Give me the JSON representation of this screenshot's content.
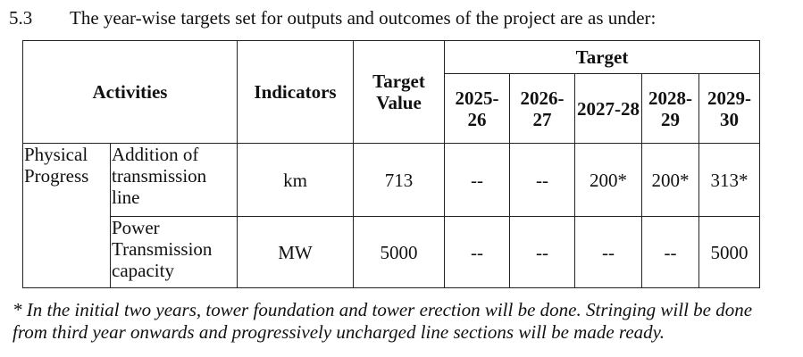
{
  "section": {
    "number": "5.3",
    "heading": "The year-wise targets set for outputs and outcomes of the project are as under:"
  },
  "table": {
    "headers": {
      "activities": "Activities",
      "indicators": "Indicators",
      "target_value": "Target Value",
      "target": "Target",
      "years": [
        "2025-26",
        "2026-27",
        "2027-28",
        "2028-29",
        "2029-30"
      ]
    },
    "rows": [
      {
        "group": "Physical Progress",
        "activity": "Addition of transmission line",
        "indicator": "km",
        "target_value": "713",
        "years": [
          "--",
          "--",
          "200*",
          "200*",
          "313*"
        ]
      },
      {
        "activity": "Power Transmission capacity",
        "indicator": "MW",
        "target_value": "5000",
        "years": [
          "--",
          "--",
          "--",
          "--",
          "5000"
        ]
      }
    ]
  },
  "footnote": "* In the initial two years, tower foundation and tower erection will be done. Stringing will be done from third year onwards and progressively uncharged line sections will be made ready."
}
